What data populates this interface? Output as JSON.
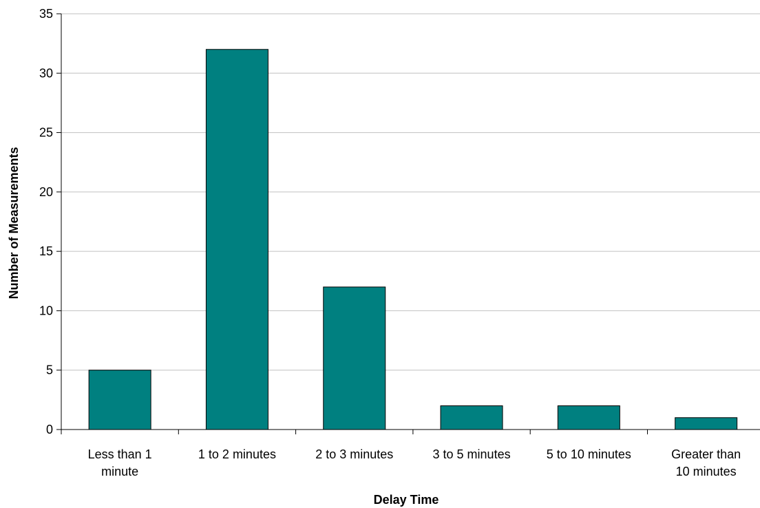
{
  "chart_data": {
    "type": "bar",
    "categories": [
      [
        "Less than 1",
        "minute"
      ],
      [
        "1 to 2 minutes"
      ],
      [
        "2 to 3 minutes"
      ],
      [
        "3 to 5 minutes"
      ],
      [
        "5 to 10 minutes"
      ],
      [
        "Greater than",
        "10 minutes"
      ]
    ],
    "values": [
      5,
      32,
      12,
      2,
      2,
      1
    ],
    "xlabel": "Delay Time",
    "ylabel": "Number of Measurements",
    "ylim": [
      0,
      35
    ],
    "yticks": [
      0,
      5,
      10,
      15,
      20,
      25,
      30,
      35
    ],
    "grid": true,
    "legend": "none",
    "colors": {
      "bar_fill": "#008080",
      "bar_stroke": "#000000",
      "grid": "#c0c0c0",
      "axis": "#000000"
    }
  }
}
